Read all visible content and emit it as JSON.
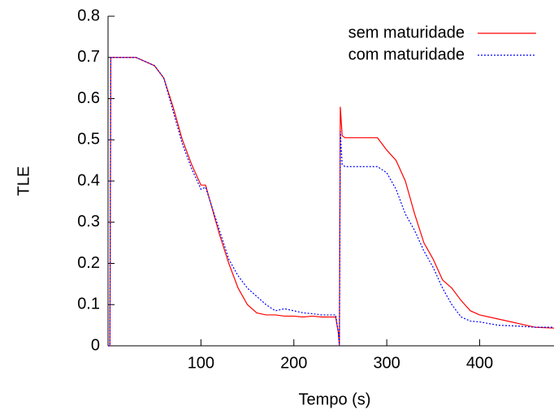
{
  "chart_data": {
    "type": "line",
    "xlabel": "Tempo (s)",
    "ylabel": "TLE",
    "x": [
      0,
      2,
      3,
      30,
      40,
      50,
      60,
      70,
      80,
      90,
      100,
      105,
      110,
      120,
      130,
      140,
      150,
      160,
      170,
      180,
      190,
      200,
      210,
      220,
      230,
      240,
      245,
      248,
      249,
      250,
      252,
      255,
      290,
      300,
      310,
      320,
      330,
      340,
      350,
      360,
      370,
      380,
      390,
      400,
      420,
      440,
      460,
      480
    ],
    "series": [
      {
        "name": "sem maturidade",
        "color": "#ff0000",
        "dash": "solid",
        "values": [
          0,
          0,
          0.7,
          0.7,
          0.69,
          0.68,
          0.65,
          0.58,
          0.5,
          0.44,
          0.39,
          0.39,
          0.35,
          0.27,
          0.2,
          0.14,
          0.1,
          0.08,
          0.075,
          0.075,
          0.072,
          0.072,
          0.07,
          0.072,
          0.07,
          0.07,
          0.07,
          0.03,
          0,
          0.58,
          0.51,
          0.505,
          0.505,
          0.475,
          0.45,
          0.4,
          0.32,
          0.25,
          0.21,
          0.16,
          0.14,
          0.11,
          0.085,
          0.075,
          0.065,
          0.055,
          0.045,
          0.043
        ]
      },
      {
        "name": "com maturidade",
        "color": "#0000ff",
        "dash": "dotted",
        "values": [
          0,
          0,
          0.7,
          0.7,
          0.69,
          0.68,
          0.65,
          0.57,
          0.49,
          0.43,
          0.38,
          0.385,
          0.35,
          0.28,
          0.21,
          0.17,
          0.14,
          0.12,
          0.1,
          0.085,
          0.09,
          0.085,
          0.08,
          0.078,
          0.075,
          0.075,
          0.075,
          0.03,
          0,
          0.52,
          0.44,
          0.435,
          0.435,
          0.42,
          0.38,
          0.32,
          0.28,
          0.23,
          0.19,
          0.14,
          0.1,
          0.07,
          0.06,
          0.058,
          0.05,
          0.048,
          0.045,
          0.045
        ]
      }
    ],
    "xlim": [
      0,
      480
    ],
    "xticks": [
      100,
      200,
      300,
      400
    ],
    "ylim": [
      0,
      0.8
    ],
    "yticks": [
      0,
      0.1,
      0.2,
      0.3,
      0.4,
      0.5,
      0.6,
      0.7,
      0.8
    ],
    "legend": "top-right",
    "grid": false
  }
}
